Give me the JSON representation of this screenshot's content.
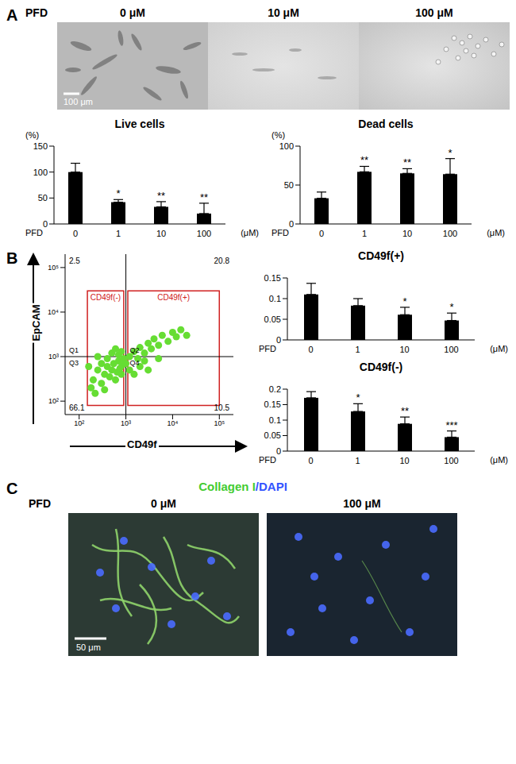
{
  "figure": {
    "panels": [
      {
        "label": "A",
        "images": {
          "header": "PFD",
          "labels": [
            "0 μM",
            "10 μM",
            "100 μM"
          ],
          "scale_bar": "100 μm"
        }
      },
      {
        "label": "B"
      },
      {
        "label": "C",
        "images": {
          "title": [
            "Collagen I",
            "/DAPI"
          ],
          "colors": [
            "#44cc33",
            "#3355ff"
          ],
          "header": "PFD",
          "labels": [
            "0 μM",
            "100 μM"
          ],
          "scale_bar": "50 μm"
        }
      }
    ]
  },
  "chart_data": [
    {
      "type": "bar",
      "title": "Live cells",
      "ylabel": "(%)",
      "xlabel": "PFD",
      "xunit": "(μM)",
      "categories": [
        "0",
        "1",
        "10",
        "100"
      ],
      "values": [
        100,
        42,
        33,
        20
      ],
      "errors": [
        17,
        5,
        10,
        20
      ],
      "significance": [
        null,
        "*",
        "**",
        "**"
      ],
      "color": "#000000",
      "ylim": [
        0,
        150
      ],
      "yticks": [
        0,
        50,
        100,
        150
      ],
      "grid": false
    },
    {
      "type": "bar",
      "title": "Dead cells",
      "ylabel": "(%)",
      "xlabel": "PFD",
      "xunit": "(μM)",
      "categories": [
        "0",
        "1",
        "10",
        "100"
      ],
      "values": [
        33,
        67,
        65,
        64
      ],
      "errors": [
        8,
        7,
        6,
        20
      ],
      "significance": [
        null,
        "**",
        "**",
        "*"
      ],
      "color": "#000000",
      "ylim": [
        0,
        100
      ],
      "yticks": [
        0,
        50,
        100
      ],
      "grid": false
    },
    {
      "type": "scatter",
      "xlabel": "CD49f",
      "ylabel": "EpCAM",
      "log": true,
      "grid": false,
      "color": "#66dd33",
      "x": [
        200,
        250,
        300,
        350,
        400,
        450,
        500,
        550,
        600,
        650,
        700,
        750,
        800,
        850,
        900,
        300,
        400,
        500,
        600,
        700,
        800,
        1000,
        1200,
        1500,
        1800,
        2000,
        2500,
        3000,
        3500,
        4000,
        5000,
        6000,
        8000,
        10000,
        12000,
        15000,
        20000,
        1200,
        1500,
        2000,
        2500,
        3000,
        5000,
        180,
        220,
        350,
        160,
        250
      ],
      "y": [
        300,
        500,
        250,
        400,
        600,
        350,
        500,
        700,
        300,
        450,
        800,
        550,
        400,
        650,
        900,
        700,
        900,
        1200,
        1500,
        1100,
        1300,
        700,
        1000,
        1300,
        900,
        1600,
        1200,
        2000,
        1500,
        2500,
        1800,
        3000,
        2200,
        3500,
        2800,
        4000,
        3000,
        500,
        400,
        600,
        800,
        500,
        900,
        200,
        150,
        180,
        600,
        1000
      ],
      "xlim": [
        50,
        200000
      ],
      "ylim": [
        50,
        200000
      ],
      "xticks": [
        {
          "value": 100,
          "label": "10²"
        },
        {
          "value": 1000,
          "label": "10³"
        },
        {
          "value": 10000,
          "label": "10⁴"
        },
        {
          "value": 100000,
          "label": "10⁵"
        }
      ],
      "yticks": [
        {
          "value": 100,
          "label": "10²"
        },
        {
          "value": 1000,
          "label": "10³"
        },
        {
          "value": 10000,
          "label": "10⁴"
        },
        {
          "value": 100000,
          "label": "10⁵"
        }
      ],
      "quadrant_lines": {
        "x": 1000,
        "y": 1000
      },
      "quadrants": [
        {
          "name": "Q1",
          "percent": 2.5
        },
        {
          "name": "Q2",
          "percent": 20.8
        },
        {
          "name": "Q3",
          "percent": 66.1
        },
        {
          "name": "Q4",
          "percent": 10.5
        }
      ],
      "gates": [
        {
          "label": "CD49f(-)",
          "x": [
            150,
            900
          ],
          "y": [
            80,
            30000
          ]
        },
        {
          "label": "CD49f(+)",
          "x": [
            1100,
            100000
          ],
          "y": [
            80,
            30000
          ]
        }
      ]
    },
    {
      "type": "bar",
      "title": "CD49f(+)",
      "categories": [
        "0",
        "1",
        "10",
        "100"
      ],
      "xlabel": "PFD",
      "xunit": "(μM)",
      "values": [
        0.11,
        0.083,
        0.061,
        0.047
      ],
      "errors": [
        0.027,
        0.017,
        0.018,
        0.018
      ],
      "significance": [
        null,
        null,
        "*",
        "*"
      ],
      "color": "#000000",
      "ylim": [
        0,
        0.15
      ],
      "yticks": [
        0,
        0.05,
        0.1,
        0.15
      ],
      "grid": false
    },
    {
      "type": "bar",
      "title": "CD49f(-)",
      "categories": [
        "0",
        "1",
        "10",
        "100"
      ],
      "xlabel": "PFD",
      "xunit": "(μM)",
      "values": [
        0.172,
        0.128,
        0.088,
        0.045
      ],
      "errors": [
        0.02,
        0.025,
        0.022,
        0.02
      ],
      "significance": [
        null,
        "*",
        "**",
        "***"
      ],
      "color": "#000000",
      "ylim": [
        0,
        0.2
      ],
      "yticks": [
        0,
        0.05,
        0.1,
        0.15,
        0.2
      ],
      "grid": false
    }
  ]
}
